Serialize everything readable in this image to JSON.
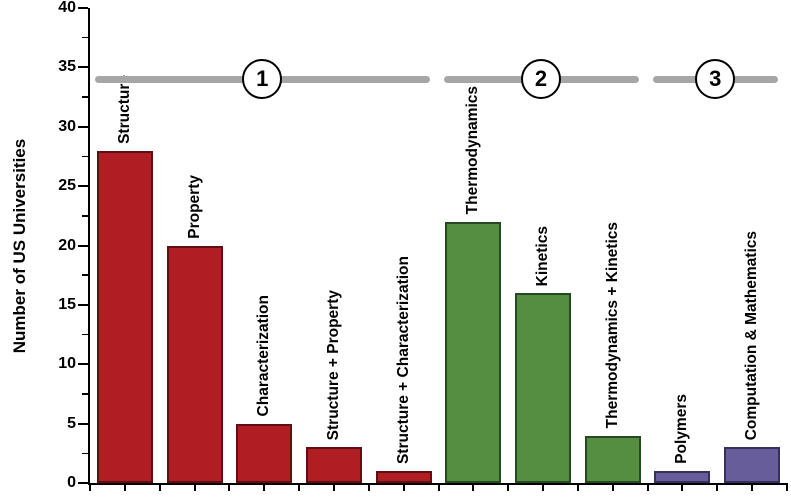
{
  "chart_data": {
    "type": "bar",
    "title": "",
    "xlabel": "",
    "ylabel": "Number of US Universities",
    "ylim": [
      0,
      40
    ],
    "yticks": [
      0,
      5,
      10,
      15,
      20,
      25,
      30,
      35,
      40
    ],
    "ytick_minor_step": 2.5,
    "grid": false,
    "legend": null,
    "categories": [
      "Structure",
      "Property",
      "Characterization",
      "Structure + Property",
      "Structure + Characterization",
      "Thermodynamics",
      "Kinetics",
      "Thermodynamics + Kinetics",
      "Polymers",
      "Computation & Mathematics"
    ],
    "values": [
      28,
      20,
      5,
      3,
      1,
      22,
      16,
      4,
      1,
      3
    ],
    "bar_colors": [
      "#b01e24",
      "#b01e24",
      "#b01e24",
      "#b01e24",
      "#b01e24",
      "#538e41",
      "#538e41",
      "#538e41",
      "#675d9b",
      "#675d9b"
    ],
    "bar_edge_colors": [
      "#5f0f12",
      "#5f0f12",
      "#5f0f12",
      "#5f0f12",
      "#5f0f12",
      "#27491f",
      "#27491f",
      "#27491f",
      "#36305c",
      "#36305c"
    ],
    "groups": [
      {
        "label": "1",
        "start": 0,
        "end": 4
      },
      {
        "label": "2",
        "start": 5,
        "end": 7
      },
      {
        "label": "3",
        "start": 8,
        "end": 9
      }
    ],
    "group_line_y": 34,
    "group_line_color": "#a6a6a6"
  }
}
